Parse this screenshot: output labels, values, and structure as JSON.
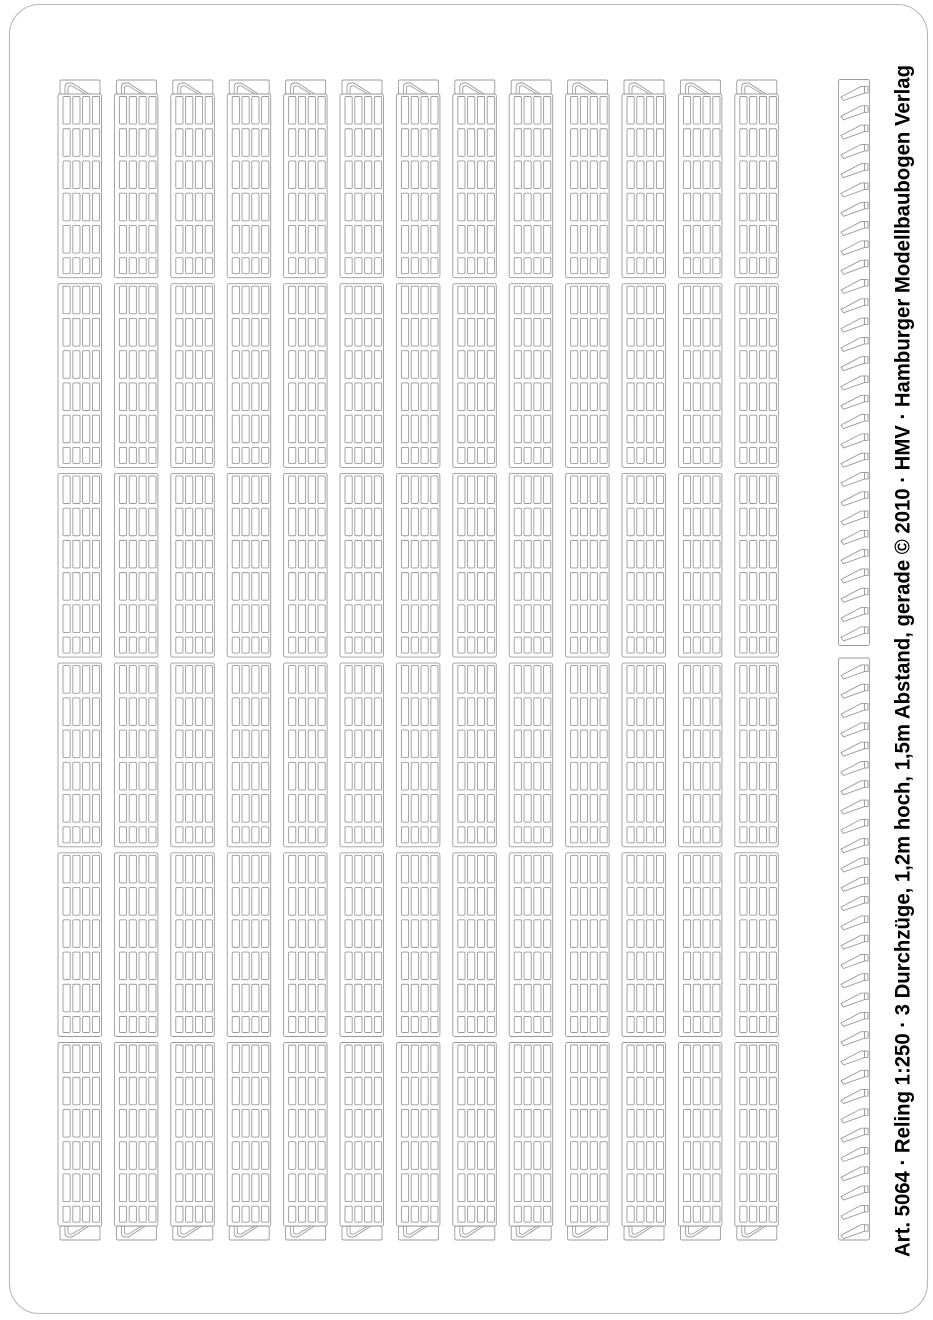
{
  "sheet": {
    "title": "Art. 5064 · Reling 1:250 · 3 Durchzüge, 1,2m hoch, 1,5m Abstand, gerade © 2010 · HMV · Hamburger Modellbaubogen Verlag",
    "background_color": "#ffffff",
    "cut_line_color": "#9a9a9a",
    "border_color": "#b8b8b8",
    "text_color": "#000000"
  },
  "parts": {
    "railing_strips": {
      "name": "straight-railing-strip",
      "count": 13,
      "segments_per_strip": 6,
      "slot_rows_per_segment": 6,
      "slots_per_row": 4
    },
    "stanchion_combs": {
      "name": "angled-stanchion-comb-strip",
      "count": 2,
      "teeth_per_strip": [
        29,
        30
      ]
    }
  }
}
